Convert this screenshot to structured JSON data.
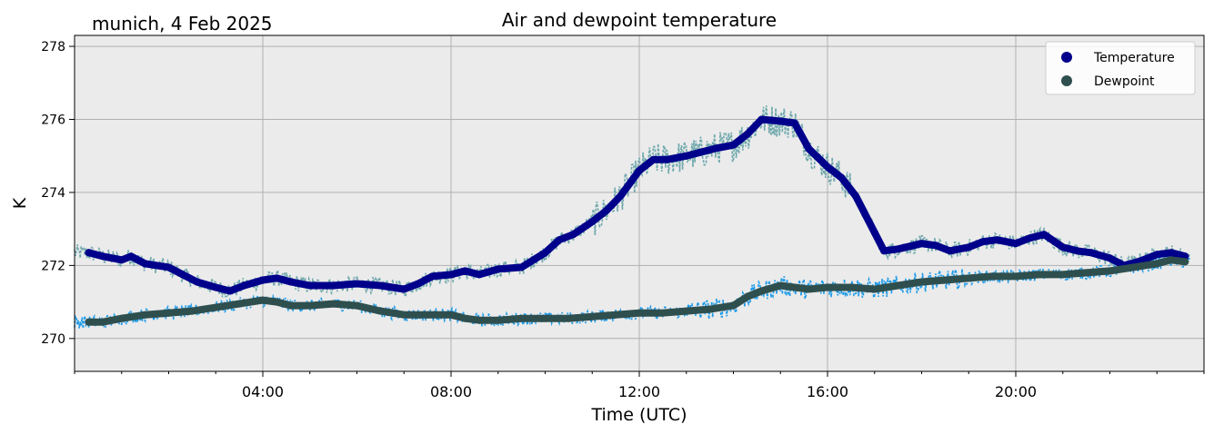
{
  "chart_data": {
    "type": "line",
    "title": "Air and dewpoint temperature",
    "subtitle": "munich, 4 Feb 2025",
    "xlabel": "Time (UTC)",
    "ylabel": "K",
    "x_unit": "hours UTC",
    "xlim": [
      0,
      24
    ],
    "ylim": [
      269.1,
      278.3
    ],
    "x_ticks": [
      {
        "value": 4,
        "label": "04:00"
      },
      {
        "value": 8,
        "label": "08:00"
      },
      {
        "value": 12,
        "label": "12:00"
      },
      {
        "value": 16,
        "label": "16:00"
      },
      {
        "value": 20,
        "label": "20:00"
      }
    ],
    "y_ticks": [
      {
        "value": 270,
        "label": "270"
      },
      {
        "value": 272,
        "label": "272"
      },
      {
        "value": 274,
        "label": "274"
      },
      {
        "value": 276,
        "label": "276"
      },
      {
        "value": 278,
        "label": "278"
      }
    ],
    "grid": true,
    "legend_position": "top-right",
    "series": [
      {
        "name": "Temperature",
        "color": "#00008b",
        "raw_color": "#6fa8ac",
        "x": [
          0.3,
          0.6,
          1.0,
          1.2,
          1.5,
          2.0,
          2.3,
          2.6,
          3.0,
          3.3,
          3.6,
          4.0,
          4.3,
          4.6,
          5.0,
          5.5,
          6.0,
          6.5,
          7.0,
          7.3,
          7.6,
          8.0,
          8.3,
          8.6,
          9.0,
          9.5,
          10.0,
          10.3,
          10.6,
          11.0,
          11.3,
          11.6,
          12.0,
          12.3,
          12.6,
          13.0,
          13.3,
          13.6,
          14.0,
          14.3,
          14.6,
          15.0,
          15.3,
          15.6,
          16.0,
          16.3,
          16.6,
          17.0,
          17.2,
          17.5,
          18.0,
          18.3,
          18.6,
          19.0,
          19.3,
          19.6,
          20.0,
          20.3,
          20.6,
          21.0,
          21.3,
          21.6,
          22.0,
          22.3,
          22.6,
          23.0,
          23.3,
          23.6
        ],
        "values": [
          272.35,
          272.25,
          272.15,
          272.25,
          272.05,
          271.95,
          271.75,
          271.55,
          271.4,
          271.3,
          271.45,
          271.6,
          271.65,
          271.55,
          271.45,
          271.45,
          271.5,
          271.45,
          271.35,
          271.5,
          271.7,
          271.75,
          271.85,
          271.75,
          271.9,
          271.95,
          272.35,
          272.7,
          272.85,
          273.2,
          273.5,
          273.9,
          274.6,
          274.9,
          274.9,
          275.0,
          275.1,
          275.2,
          275.3,
          275.6,
          276.0,
          275.95,
          275.9,
          275.2,
          274.7,
          274.4,
          273.9,
          272.9,
          272.4,
          272.45,
          272.6,
          272.55,
          272.4,
          272.5,
          272.65,
          272.7,
          272.6,
          272.75,
          272.85,
          272.5,
          272.4,
          272.35,
          272.2,
          272.0,
          272.1,
          272.3,
          272.35,
          272.25
        ]
      },
      {
        "name": "Dewpoint",
        "color": "#2f4f4f",
        "raw_color": "#1e9be8",
        "x": [
          0.3,
          0.6,
          1.0,
          1.5,
          2.0,
          2.5,
          3.0,
          3.5,
          4.0,
          4.3,
          4.6,
          5.0,
          5.5,
          6.0,
          6.5,
          7.0,
          7.5,
          8.0,
          8.3,
          8.6,
          9.0,
          9.5,
          10.0,
          10.5,
          11.0,
          11.5,
          12.0,
          12.5,
          13.0,
          13.5,
          14.0,
          14.3,
          14.6,
          15.0,
          15.3,
          15.6,
          16.0,
          16.5,
          17.0,
          17.5,
          18.0,
          18.5,
          19.0,
          19.5,
          20.0,
          20.5,
          21.0,
          21.5,
          22.0,
          22.5,
          23.0,
          23.3,
          23.6
        ],
        "values": [
          270.45,
          270.45,
          270.55,
          270.65,
          270.7,
          270.75,
          270.85,
          270.95,
          271.05,
          271.0,
          270.9,
          270.9,
          270.95,
          270.9,
          270.75,
          270.65,
          270.65,
          270.65,
          270.55,
          270.5,
          270.5,
          270.55,
          270.55,
          270.55,
          270.6,
          270.65,
          270.7,
          270.7,
          270.75,
          270.8,
          270.9,
          271.15,
          271.3,
          271.45,
          271.4,
          271.35,
          271.4,
          271.4,
          271.35,
          271.45,
          271.55,
          271.6,
          271.65,
          271.7,
          271.7,
          271.75,
          271.75,
          271.8,
          271.85,
          271.95,
          272.05,
          272.15,
          272.1
        ]
      }
    ]
  }
}
